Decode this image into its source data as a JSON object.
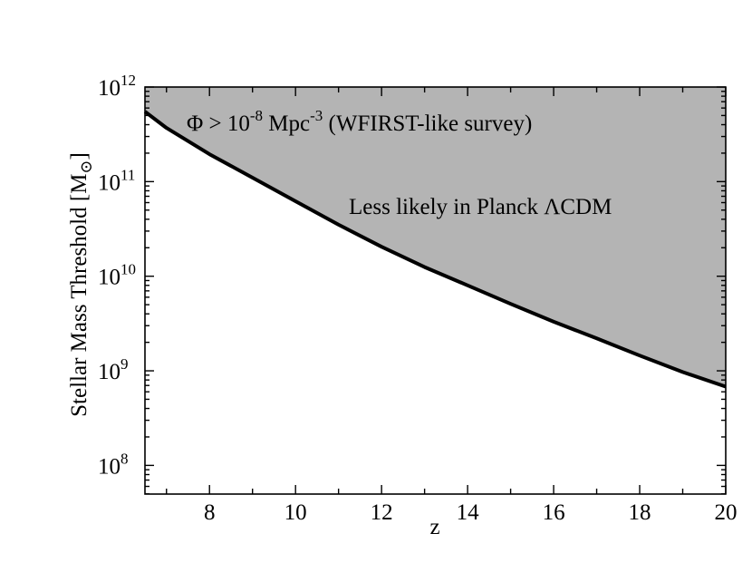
{
  "chart_data": {
    "type": "area",
    "title": "",
    "xlabel": "z",
    "ylabel": "Stellar Mass Threshold [M⊙]",
    "ylabel_parts": {
      "text": "Stellar Mass Threshold [M",
      "sub": "⊙",
      "close": "]"
    },
    "xlim": [
      6.5,
      20
    ],
    "ylim": [
      100000000.0,
      1000000000000.0
    ],
    "yscale": "log",
    "grid": false,
    "legend": "none",
    "x_ticks": [
      8,
      10,
      12,
      14,
      16,
      18,
      20
    ],
    "x_ticklabels": [
      "8",
      "10",
      "12",
      "14",
      "16",
      "18",
      "20"
    ],
    "y_ticks": [
      100000000.0,
      1000000000.0,
      10000000000.0,
      100000000000.0,
      1000000000000.0
    ],
    "y_ticklabels": [
      {
        "base": "10",
        "exp": "8"
      },
      {
        "base": "10",
        "exp": "9"
      },
      {
        "base": "10",
        "exp": "10"
      },
      {
        "base": "10",
        "exp": "11"
      },
      {
        "base": "10",
        "exp": "12"
      }
    ],
    "series": [
      {
        "x": [
          6.5,
          7,
          8,
          9,
          10,
          11,
          12,
          13,
          14,
          15,
          16,
          17,
          18,
          19,
          20
        ],
        "y": [
          550000000000.0,
          370000000000.0,
          195000000000.0,
          110000000000.0,
          62000000000.0,
          35000000000.0,
          20500000000.0,
          12500000000.0,
          8000000000.0,
          5100000000.0,
          3300000000.0,
          2200000000.0,
          1450000000.0,
          970000000.0,
          680000000.0
        ]
      }
    ],
    "shaded_region": "above the curve",
    "annotations": [
      {
        "parts": [
          "Φ > 10",
          "-8",
          " Mpc",
          "-3",
          " (WFIRST-like survey)"
        ]
      },
      {
        "text": "Less likely in Planck ΛCDM"
      }
    ],
    "colors": {
      "fill": "#b4b4b4",
      "line": "#000000",
      "axes": "#000000"
    }
  }
}
